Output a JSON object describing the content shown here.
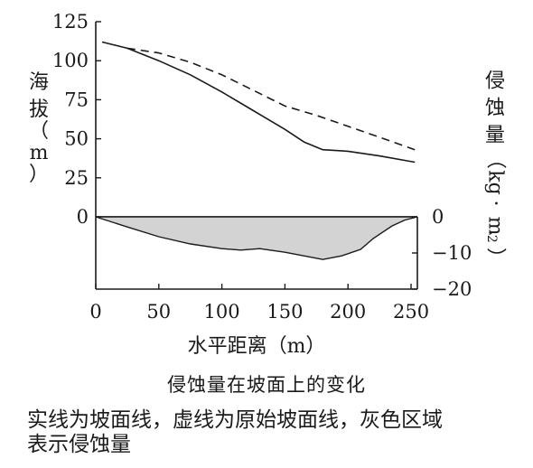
{
  "chart_data": {
    "type": "line",
    "title": "侵蚀量在坡面上的变化",
    "xlabel": "水平距离（m）",
    "ylabel_left": [
      "海",
      "拔",
      "（",
      "m",
      "）"
    ],
    "ylabel_right": [
      "侵",
      "蚀",
      "量",
      "（",
      "kg",
      "·",
      "m",
      "-2",
      "）"
    ],
    "x_ticks": [
      "0",
      "50",
      "100",
      "150",
      "200",
      "250"
    ],
    "y_ticks_left": [
      "0",
      "25",
      "50",
      "75",
      "100",
      "125"
    ],
    "y_ticks_right": [
      "0",
      "−10",
      "−20"
    ],
    "xlim": [
      0,
      255
    ],
    "ylim_left": [
      0,
      125
    ],
    "ylim_right": [
      -20,
      0
    ],
    "series": [
      {
        "style": "solid",
        "x": [
          5,
          25,
          50,
          75,
          100,
          125,
          150,
          165,
          180,
          200,
          225,
          253
        ],
        "y": [
          112,
          108,
          100,
          91,
          80,
          68,
          56,
          48,
          43,
          42,
          39,
          35
        ]
      },
      {
        "style": "dashed",
        "x": [
          25,
          50,
          75,
          100,
          125,
          150,
          175,
          200,
          225,
          253
        ],
        "y": [
          108,
          105,
          99,
          91,
          81,
          71,
          65,
          58,
          51,
          43
        ]
      },
      {
        "style": "area",
        "color": "#d3d3d3",
        "x": [
          0,
          25,
          50,
          75,
          100,
          115,
          130,
          150,
          165,
          180,
          195,
          210,
          220,
          235,
          245,
          255
        ],
        "y": [
          0,
          -2.8,
          -5.5,
          -7.5,
          -8.8,
          -9.2,
          -8.8,
          -9.8,
          -10.8,
          -11.8,
          -10.8,
          -9.0,
          -6.0,
          -2.5,
          -0.9,
          0
        ]
      }
    ]
  },
  "caption": {
    "title": "侵蚀量在坡面上的变化",
    "note_line1": "实线为坡面线，虚线为原始坡面线，灰色区域",
    "note_line2": "表示侵蚀量"
  }
}
